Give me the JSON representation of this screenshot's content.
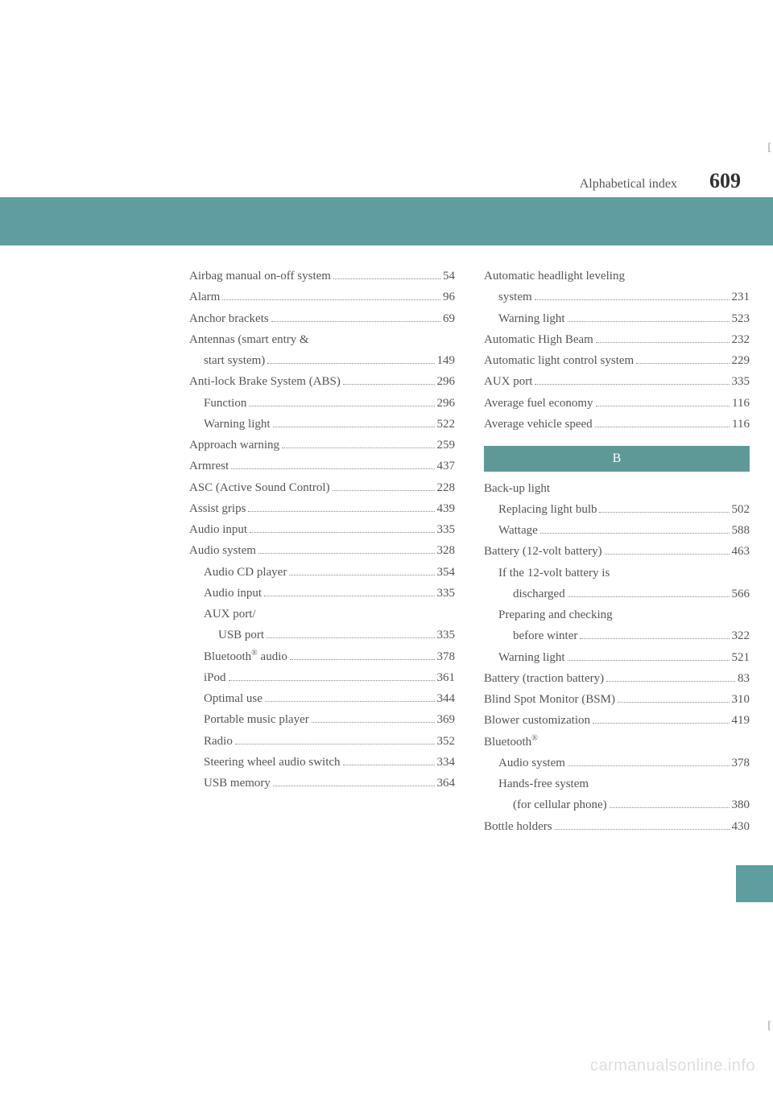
{
  "header": {
    "label": "Alphabetical index",
    "page_number": "609"
  },
  "colors": {
    "teal_bar": "#5f9ea0",
    "section_header_bg": "#5e9998",
    "text": "#555555",
    "page_num": "#333333",
    "watermark": "#dddddd"
  },
  "col1": [
    {
      "type": "item",
      "indent": 0,
      "label": "Airbag manual on-off system",
      "page": "54"
    },
    {
      "type": "item",
      "indent": 0,
      "label": "Alarm",
      "page": "96"
    },
    {
      "type": "item",
      "indent": 0,
      "label": "Anchor brackets",
      "page": "69"
    },
    {
      "type": "cont",
      "indent": 0,
      "label": "Antennas (smart entry &"
    },
    {
      "type": "item",
      "indent": 1,
      "label": "start system)",
      "page": "149"
    },
    {
      "type": "item",
      "indent": 0,
      "label": "Anti-lock Brake System (ABS)",
      "page": "296"
    },
    {
      "type": "item",
      "indent": 1,
      "label": "Function",
      "page": "296"
    },
    {
      "type": "item",
      "indent": 1,
      "label": "Warning light",
      "page": "522"
    },
    {
      "type": "item",
      "indent": 0,
      "label": "Approach warning",
      "page": "259"
    },
    {
      "type": "item",
      "indent": 0,
      "label": "Armrest",
      "page": "437"
    },
    {
      "type": "item",
      "indent": 0,
      "label": "ASC (Active Sound Control)",
      "page": "228"
    },
    {
      "type": "item",
      "indent": 0,
      "label": "Assist grips",
      "page": "439"
    },
    {
      "type": "item",
      "indent": 0,
      "label": "Audio input",
      "page": "335"
    },
    {
      "type": "item",
      "indent": 0,
      "label": "Audio system",
      "page": "328"
    },
    {
      "type": "item",
      "indent": 1,
      "label": "Audio CD player",
      "page": "354"
    },
    {
      "type": "item",
      "indent": 1,
      "label": "Audio input",
      "page": "335"
    },
    {
      "type": "cont",
      "indent": 1,
      "label": "AUX port/"
    },
    {
      "type": "item",
      "indent": 2,
      "label": "USB port",
      "page": "335"
    },
    {
      "type": "item-reg",
      "indent": 1,
      "label_pre": "Bluetooth",
      "label_post": " audio",
      "page": "378"
    },
    {
      "type": "item",
      "indent": 1,
      "label": "iPod",
      "page": "361"
    },
    {
      "type": "item",
      "indent": 1,
      "label": "Optimal use",
      "page": "344"
    },
    {
      "type": "item",
      "indent": 1,
      "label": "Portable music player",
      "page": "369"
    },
    {
      "type": "item",
      "indent": 1,
      "label": "Radio",
      "page": "352"
    },
    {
      "type": "item",
      "indent": 1,
      "label": "Steering wheel audio switch",
      "page": "334"
    },
    {
      "type": "item",
      "indent": 1,
      "label": "USB memory",
      "page": "364"
    }
  ],
  "col2_top": [
    {
      "type": "cont",
      "indent": 0,
      "label": "Automatic headlight leveling"
    },
    {
      "type": "item",
      "indent": 1,
      "label": "system",
      "page": "231"
    },
    {
      "type": "item",
      "indent": 1,
      "label": "Warning light",
      "page": "523"
    },
    {
      "type": "item",
      "indent": 0,
      "label": "Automatic High Beam",
      "page": "232"
    },
    {
      "type": "item",
      "indent": 0,
      "label": "Automatic light control system",
      "page": "229"
    },
    {
      "type": "item",
      "indent": 0,
      "label": "AUX port",
      "page": "335"
    },
    {
      "type": "item",
      "indent": 0,
      "label": "Average fuel economy",
      "page": "116"
    },
    {
      "type": "item",
      "indent": 0,
      "label": "Average vehicle speed",
      "page": "116"
    }
  ],
  "section_b": "B",
  "col2_bottom": [
    {
      "type": "cont",
      "indent": 0,
      "label": "Back-up light"
    },
    {
      "type": "item",
      "indent": 1,
      "label": "Replacing light bulb",
      "page": "502"
    },
    {
      "type": "item",
      "indent": 1,
      "label": "Wattage",
      "page": "588"
    },
    {
      "type": "item",
      "indent": 0,
      "label": "Battery (12-volt battery)",
      "page": "463"
    },
    {
      "type": "cont",
      "indent": 1,
      "label": "If the 12-volt battery is"
    },
    {
      "type": "item",
      "indent": 2,
      "label": "discharged",
      "page": "566"
    },
    {
      "type": "cont",
      "indent": 1,
      "label": "Preparing and checking"
    },
    {
      "type": "item",
      "indent": 2,
      "label": "before winter",
      "page": "322"
    },
    {
      "type": "item",
      "indent": 1,
      "label": "Warning light",
      "page": "521"
    },
    {
      "type": "item",
      "indent": 0,
      "label": "Battery (traction battery)",
      "page": "83"
    },
    {
      "type": "item",
      "indent": 0,
      "label": "Blind Spot Monitor (BSM)",
      "page": "310"
    },
    {
      "type": "item",
      "indent": 0,
      "label": "Blower customization",
      "page": "419"
    },
    {
      "type": "cont-reg",
      "indent": 0,
      "label_pre": "Bluetooth"
    },
    {
      "type": "item",
      "indent": 1,
      "label": "Audio system",
      "page": "378"
    },
    {
      "type": "cont",
      "indent": 1,
      "label": "Hands-free system"
    },
    {
      "type": "item",
      "indent": 2,
      "label": "(for cellular phone)",
      "page": "380"
    },
    {
      "type": "item",
      "indent": 0,
      "label": "Bottle holders",
      "page": "430"
    }
  ],
  "watermark": "carmanualsonline.info"
}
